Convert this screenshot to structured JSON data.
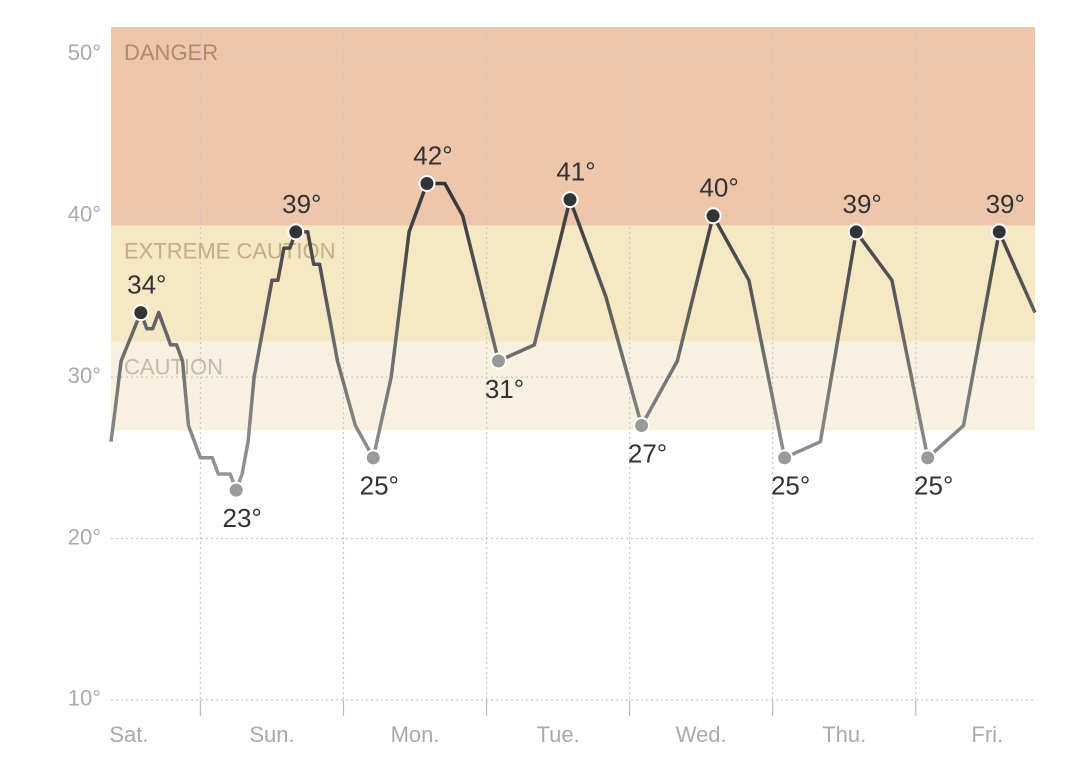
{
  "chart_data": {
    "type": "line",
    "xlim": [
      9,
      164
    ],
    "ylim": [
      9,
      51.7
    ],
    "yticks": [
      {
        "value": 10,
        "label": "10°"
      },
      {
        "value": 20,
        "label": "20°"
      },
      {
        "value": 30,
        "label": "30°"
      },
      {
        "value": 40,
        "label": "40°"
      },
      {
        "value": 50,
        "label": "50°"
      }
    ],
    "xticks": [
      {
        "value": 12,
        "label": "Sat."
      },
      {
        "value": 36,
        "label": "Sun."
      },
      {
        "value": 60,
        "label": "Mon."
      },
      {
        "value": 84,
        "label": "Tue."
      },
      {
        "value": 108,
        "label": "Wed."
      },
      {
        "value": 132,
        "label": "Thu."
      },
      {
        "value": 156,
        "label": "Fri."
      }
    ],
    "xgrid": [
      24,
      48,
      72,
      96,
      120,
      144
    ],
    "grid": true,
    "bands": [
      {
        "name": "DANGER",
        "from": 39.4,
        "to": 51.7,
        "color": "#edc6ac",
        "label_color": "#b8866a"
      },
      {
        "name": "EXTREME CAUTION",
        "from": 32.2,
        "to": 39.4,
        "color": "#f6e8c4",
        "label_color": "#c4ae84"
      },
      {
        "name": "CAUTION",
        "from": 26.7,
        "to": 32.2,
        "color": "#f8f1e1",
        "label_color": "#c6baa4"
      }
    ],
    "series": [
      {
        "color_high": "#333333",
        "color_low": "#9a9a9a",
        "x": [
          9,
          9.7,
          10.7,
          14,
          15,
          16,
          17,
          19,
          20,
          21,
          22,
          24,
          26,
          27,
          29,
          30,
          31,
          32,
          33,
          34,
          36,
          37,
          38,
          39,
          40,
          42,
          43,
          44,
          47,
          50,
          53,
          56,
          59,
          62,
          65,
          68,
          74,
          80,
          86,
          92,
          98,
          104,
          110,
          116,
          122,
          128,
          134,
          140,
          146,
          152,
          158,
          164
        ],
        "values": [
          26,
          28,
          31,
          34,
          33,
          33,
          34,
          32,
          32,
          31,
          27,
          25,
          25,
          24,
          24,
          23,
          24,
          26,
          30,
          32,
          36,
          36,
          38,
          38,
          39,
          39,
          37,
          37,
          31,
          27,
          25,
          30,
          39,
          42,
          42,
          40,
          31,
          32,
          41,
          35,
          27,
          31,
          40,
          36,
          25,
          26,
          39,
          36,
          25,
          27,
          39,
          34
        ]
      }
    ],
    "annotations": [
      {
        "x": 14,
        "value": 34,
        "label": "34°",
        "position": "above"
      },
      {
        "x": 30,
        "value": 23,
        "label": "23°",
        "position": "below"
      },
      {
        "x": 40,
        "value": 39,
        "label": "39°",
        "position": "above"
      },
      {
        "x": 53,
        "value": 25,
        "label": "25°",
        "position": "below"
      },
      {
        "x": 62,
        "value": 42,
        "label": "42°",
        "position": "above"
      },
      {
        "x": 74,
        "value": 31,
        "label": "31°",
        "position": "below"
      },
      {
        "x": 86,
        "value": 41,
        "label": "41°",
        "position": "above"
      },
      {
        "x": 98,
        "value": 27,
        "label": "27°",
        "position": "below"
      },
      {
        "x": 110,
        "value": 40,
        "label": "40°",
        "position": "above"
      },
      {
        "x": 122,
        "value": 25,
        "label": "25°",
        "position": "below"
      },
      {
        "x": 134,
        "value": 39,
        "label": "39°",
        "position": "above"
      },
      {
        "x": 146,
        "value": 25,
        "label": "25°",
        "position": "below"
      },
      {
        "x": 158,
        "value": 39,
        "label": "39°",
        "position": "above"
      }
    ]
  }
}
